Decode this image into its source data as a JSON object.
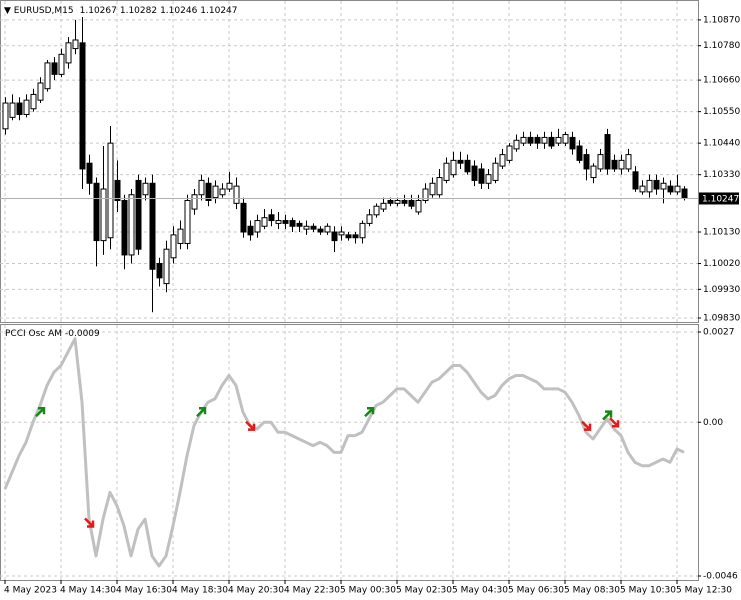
{
  "chart_data": [
    {
      "type": "candlestick",
      "title": "EURUSD,M15",
      "info": [
        1.10267,
        1.10282,
        1.10246,
        1.10247
      ],
      "last_price": 1.10247,
      "grid": true,
      "ylim": [
        1.09816,
        1.10936
      ],
      "yticks": [
        {
          "value": 1.1087,
          "label": "1.10870"
        },
        {
          "value": 1.1078,
          "label": "1.10780"
        },
        {
          "value": 1.1066,
          "label": "1.10660"
        },
        {
          "value": 1.1055,
          "label": "1.10550"
        },
        {
          "value": 1.1044,
          "label": "1.10440"
        },
        {
          "value": 1.1033,
          "label": "1.10330"
        },
        {
          "value": 1.1013,
          "label": "1.10130"
        },
        {
          "value": 1.1002,
          "label": "1.10020"
        },
        {
          "value": 1.0993,
          "label": "1.09930"
        },
        {
          "value": 1.0983,
          "label": "1.09830"
        }
      ],
      "open": [
        1.1049,
        1.1053,
        1.1058,
        1.1054,
        1.1056,
        1.1059,
        1.1063,
        1.1072,
        1.1068,
        1.1072,
        1.1077,
        1.1079,
        1.1037,
        1.103,
        1.101,
        1.1011,
        1.1031,
        1.1024,
        1.1005,
        1.1031,
        1.1026,
        1.103,
        1.1002,
        1.0995,
        1.1004,
        1.1009,
        1.1009,
        1.1021,
        1.1026,
        1.103,
        1.1025,
        1.1026,
        1.1028,
        1.1023,
        1.1023,
        1.1015,
        1.1013,
        1.1015,
        1.1019,
        1.1016,
        1.1017,
        1.1017,
        1.1016,
        1.1014,
        1.1015,
        1.1014,
        1.1013,
        1.1013,
        1.1012,
        1.1012,
        1.1012,
        1.1011,
        1.1016,
        1.1019,
        1.1021,
        1.1024,
        1.1023,
        1.1024,
        1.1024,
        1.102,
        1.1024,
        1.1026,
        1.1026,
        1.1031,
        1.1033,
        1.1038,
        1.1038,
        1.1036,
        1.1035,
        1.103,
        1.1031,
        1.1036,
        1.1038,
        1.1042,
        1.1044,
        1.1046,
        1.1046,
        1.1044,
        1.1046,
        1.1044,
        1.1044,
        1.1046,
        1.1043,
        1.104,
        1.1032,
        1.1035,
        1.1047,
        1.1038,
        1.1035,
        1.1035,
        1.1034,
        1.1027,
        1.1027,
        1.1031,
        1.1028,
        1.1029,
        1.1027,
        1.1028
      ],
      "high": [
        1.106,
        1.1061,
        1.106,
        1.1061,
        1.1063,
        1.1067,
        1.1073,
        1.1074,
        1.1077,
        1.1081,
        1.1087,
        1.1088,
        1.104,
        1.1032,
        1.1043,
        1.105,
        1.1038,
        1.1026,
        1.1028,
        1.1033,
        1.1032,
        1.1033,
        1.1004,
        1.101,
        1.1015,
        1.1017,
        1.1026,
        1.1028,
        1.1033,
        1.1032,
        1.1031,
        1.103,
        1.1034,
        1.1032,
        1.1025,
        1.1017,
        1.1019,
        1.1021,
        1.1021,
        1.102,
        1.1019,
        1.1018,
        1.1017,
        1.1017,
        1.1016,
        1.1015,
        1.1016,
        1.1015,
        1.1015,
        1.1013,
        1.1013,
        1.1017,
        1.1021,
        1.1023,
        1.1025,
        1.1025,
        1.1025,
        1.1026,
        1.1026,
        1.1026,
        1.103,
        1.1032,
        1.1035,
        1.1039,
        1.1041,
        1.1041,
        1.104,
        1.1038,
        1.1037,
        1.1035,
        1.1039,
        1.1042,
        1.1044,
        1.1047,
        1.1048,
        1.1048,
        1.1047,
        1.1048,
        1.1048,
        1.1049,
        1.1048,
        1.1048,
        1.1045,
        1.1042,
        1.1037,
        1.1042,
        1.1049,
        1.104,
        1.104,
        1.1042,
        1.1036,
        1.1031,
        1.1033,
        1.1033,
        1.1032,
        1.1031,
        1.1033,
        1.1029
      ],
      "low": [
        1.1047,
        1.1052,
        1.1052,
        1.1053,
        1.1055,
        1.1058,
        1.1062,
        1.1066,
        1.1067,
        1.107,
        1.1075,
        1.1028,
        1.1026,
        1.1001,
        1.1005,
        1.1007,
        1.102,
        1.1,
        1.1002,
        1.1005,
        1.1024,
        1.0985,
        1.0994,
        1.0992,
        1.1002,
        1.1007,
        1.1007,
        1.1019,
        1.1024,
        1.1022,
        1.1023,
        1.1025,
        1.1027,
        1.1021,
        1.1011,
        1.101,
        1.1011,
        1.1014,
        1.1015,
        1.1014,
        1.1014,
        1.1013,
        1.1013,
        1.1012,
        1.1013,
        1.1012,
        1.1012,
        1.1006,
        1.101,
        1.101,
        1.1009,
        1.1009,
        1.1015,
        1.1018,
        1.102,
        1.1022,
        1.1022,
        1.1022,
        1.1021,
        1.1019,
        1.1023,
        1.1025,
        1.1025,
        1.103,
        1.1032,
        1.1035,
        1.1033,
        1.1029,
        1.1028,
        1.1028,
        1.103,
        1.1035,
        1.1037,
        1.1041,
        1.1043,
        1.1043,
        1.1042,
        1.1042,
        1.1042,
        1.1043,
        1.1043,
        1.104,
        1.1037,
        1.1031,
        1.103,
        1.1034,
        1.1033,
        1.1034,
        1.1033,
        1.1034,
        1.1027,
        1.1026,
        1.1025,
        1.1026,
        1.1023,
        1.1026,
        1.1026,
        1.1024
      ],
      "close": [
        1.1058,
        1.1058,
        1.1054,
        1.1059,
        1.1061,
        1.1065,
        1.1072,
        1.1068,
        1.1075,
        1.1079,
        1.108,
        1.1035,
        1.103,
        1.101,
        1.1028,
        1.1044,
        1.1024,
        1.1005,
        1.1026,
        1.1007,
        1.103,
        1.1,
        1.0997,
        1.1007,
        1.1012,
        1.1014,
        1.1024,
        1.1026,
        1.1031,
        1.1024,
        1.1029,
        1.1028,
        1.103,
        1.1029,
        1.1013,
        1.1012,
        1.1017,
        1.1018,
        1.1017,
        1.1017,
        1.1016,
        1.1015,
        1.1015,
        1.1015,
        1.1014,
        1.1013,
        1.1015,
        1.101,
        1.1013,
        1.1011,
        1.1011,
        1.1016,
        1.1019,
        1.1022,
        1.1023,
        1.1023,
        1.1024,
        1.1023,
        1.1022,
        1.1024,
        1.1028,
        1.103,
        1.1032,
        1.1037,
        1.1038,
        1.1037,
        1.1034,
        1.1031,
        1.103,
        1.1033,
        1.1037,
        1.104,
        1.1043,
        1.1045,
        1.1046,
        1.1044,
        1.1044,
        1.1046,
        1.1043,
        1.1046,
        1.1047,
        1.1042,
        1.1038,
        1.1035,
        1.1036,
        1.104,
        1.1035,
        1.1035,
        1.1038,
        1.104,
        1.1028,
        1.1029,
        1.1031,
        1.1028,
        1.103,
        1.1027,
        1.1029,
        1.1025
      ]
    },
    {
      "type": "line",
      "title": "PCCI Osc AM",
      "current": -0.0009,
      "grid": true,
      "ylim": [
        -0.00472,
        0.00291
      ],
      "yticks": [
        0.0027,
        {
          "value": 0,
          "label": "0.00"
        },
        -0.0046
      ],
      "categories": [
        "4 May 2023",
        null,
        null,
        null,
        null,
        null,
        null,
        null,
        "4 May 14:30",
        null,
        null,
        null,
        null,
        null,
        null,
        null,
        "4 May 16:30",
        null,
        null,
        null,
        null,
        null,
        null,
        null,
        "4 May 18:30",
        null,
        null,
        null,
        null,
        null,
        null,
        null,
        "4 May 20:30",
        null,
        null,
        null,
        null,
        null,
        null,
        null,
        "4 May 22:30",
        null,
        null,
        null,
        null,
        null,
        null,
        null,
        "5 May 00:30",
        null,
        null,
        null,
        null,
        null,
        null,
        null,
        "5 May 02:30",
        null,
        null,
        null,
        null,
        null,
        null,
        null,
        "5 May 04:30",
        null,
        null,
        null,
        null,
        null,
        null,
        null,
        "5 May 06:30",
        null,
        null,
        null,
        null,
        null,
        null,
        null,
        "5 May 08:30",
        null,
        null,
        null,
        null,
        null,
        null,
        null,
        "5 May 10:30",
        null,
        null,
        null,
        null,
        null,
        null,
        null,
        "5 May 12:30",
        null
      ],
      "series": [
        {
          "type": "line",
          "color": "#c0c0c0",
          "values": [
            -0.002,
            -0.0015,
            -0.001,
            -0.0006,
            0,
            0.0005,
            0.0011,
            0.0015,
            0.0017,
            0.0021,
            0.0025,
            0.0006,
            -0.0029,
            -0.004,
            -0.0029,
            -0.0021,
            -0.0025,
            -0.0031,
            -0.004,
            -0.0032,
            -0.0029,
            -0.004,
            -0.0043,
            -0.004,
            -0.0031,
            -0.0021,
            -0.001,
            -0.0001,
            0.0003,
            0.0006,
            0.0007,
            0.0011,
            0.0014,
            0.0011,
            0.0003,
            -0.0001,
            -0.0002,
            0,
            0,
            -0.0003,
            -0.0003,
            -0.0004,
            -0.0005,
            -0.0006,
            -0.0007,
            -0.0006,
            -0.0007,
            -0.0009,
            -0.0009,
            -0.0004,
            -0.0004,
            -0.0003,
            0.0001,
            0.0005,
            0.0006,
            0.0008,
            0.001,
            0.001,
            0.0008,
            0.0006,
            0.0009,
            0.0012,
            0.0013,
            0.0015,
            0.0017,
            0.0017,
            0.0015,
            0.0012,
            0.0009,
            0.0007,
            0.0008,
            0.0011,
            0.0013,
            0.0014,
            0.0014,
            0.0013,
            0.0012,
            0.001,
            0.001,
            0.001,
            0.0009,
            0.0006,
            0.0002,
            -0.0003,
            -0.0005,
            -0.0002,
            0.0001,
            -0.0002,
            -0.0004,
            -0.0009,
            -0.0012,
            -0.0013,
            -0.0013,
            -0.0012,
            -0.0011,
            -0.0012,
            -0.0008,
            -0.0009
          ]
        },
        {
          "type": "arrow-up",
          "color": "#138a13",
          "values": [
            null,
            null,
            null,
            null,
            null,
            0.0003,
            null,
            null,
            null,
            null,
            null,
            null,
            null,
            null,
            null,
            null,
            null,
            null,
            null,
            null,
            null,
            null,
            null,
            null,
            null,
            null,
            null,
            null,
            0.0003,
            null,
            null,
            null,
            null,
            null,
            null,
            null,
            null,
            null,
            null,
            null,
            null,
            null,
            null,
            null,
            null,
            null,
            null,
            null,
            null,
            null,
            null,
            null,
            0.0003,
            null,
            null,
            null,
            null,
            null,
            null,
            null,
            null,
            null,
            null,
            null,
            null,
            null,
            null,
            null,
            null,
            null,
            null,
            null,
            null,
            null,
            null,
            null,
            null,
            null,
            null,
            null,
            null,
            null,
            null,
            null,
            null,
            null,
            0.0002,
            null,
            null,
            null,
            null,
            null,
            null,
            null,
            null,
            null,
            null,
            null
          ]
        },
        {
          "type": "arrow-down",
          "color": "#e81818",
          "values": [
            null,
            null,
            null,
            null,
            null,
            null,
            null,
            null,
            null,
            null,
            null,
            null,
            -0.003,
            null,
            null,
            null,
            null,
            null,
            null,
            null,
            null,
            null,
            null,
            null,
            null,
            null,
            null,
            null,
            null,
            null,
            null,
            null,
            null,
            null,
            null,
            -0.0001,
            null,
            null,
            null,
            null,
            null,
            null,
            null,
            null,
            null,
            null,
            null,
            null,
            null,
            null,
            null,
            null,
            null,
            null,
            null,
            null,
            null,
            null,
            null,
            null,
            null,
            null,
            null,
            null,
            null,
            null,
            null,
            null,
            null,
            null,
            null,
            null,
            null,
            null,
            null,
            null,
            null,
            null,
            null,
            null,
            null,
            null,
            null,
            -0.0001,
            null,
            null,
            null,
            0,
            null,
            null,
            null,
            null,
            null,
            null,
            null,
            null,
            null,
            null
          ]
        }
      ]
    }
  ]
}
